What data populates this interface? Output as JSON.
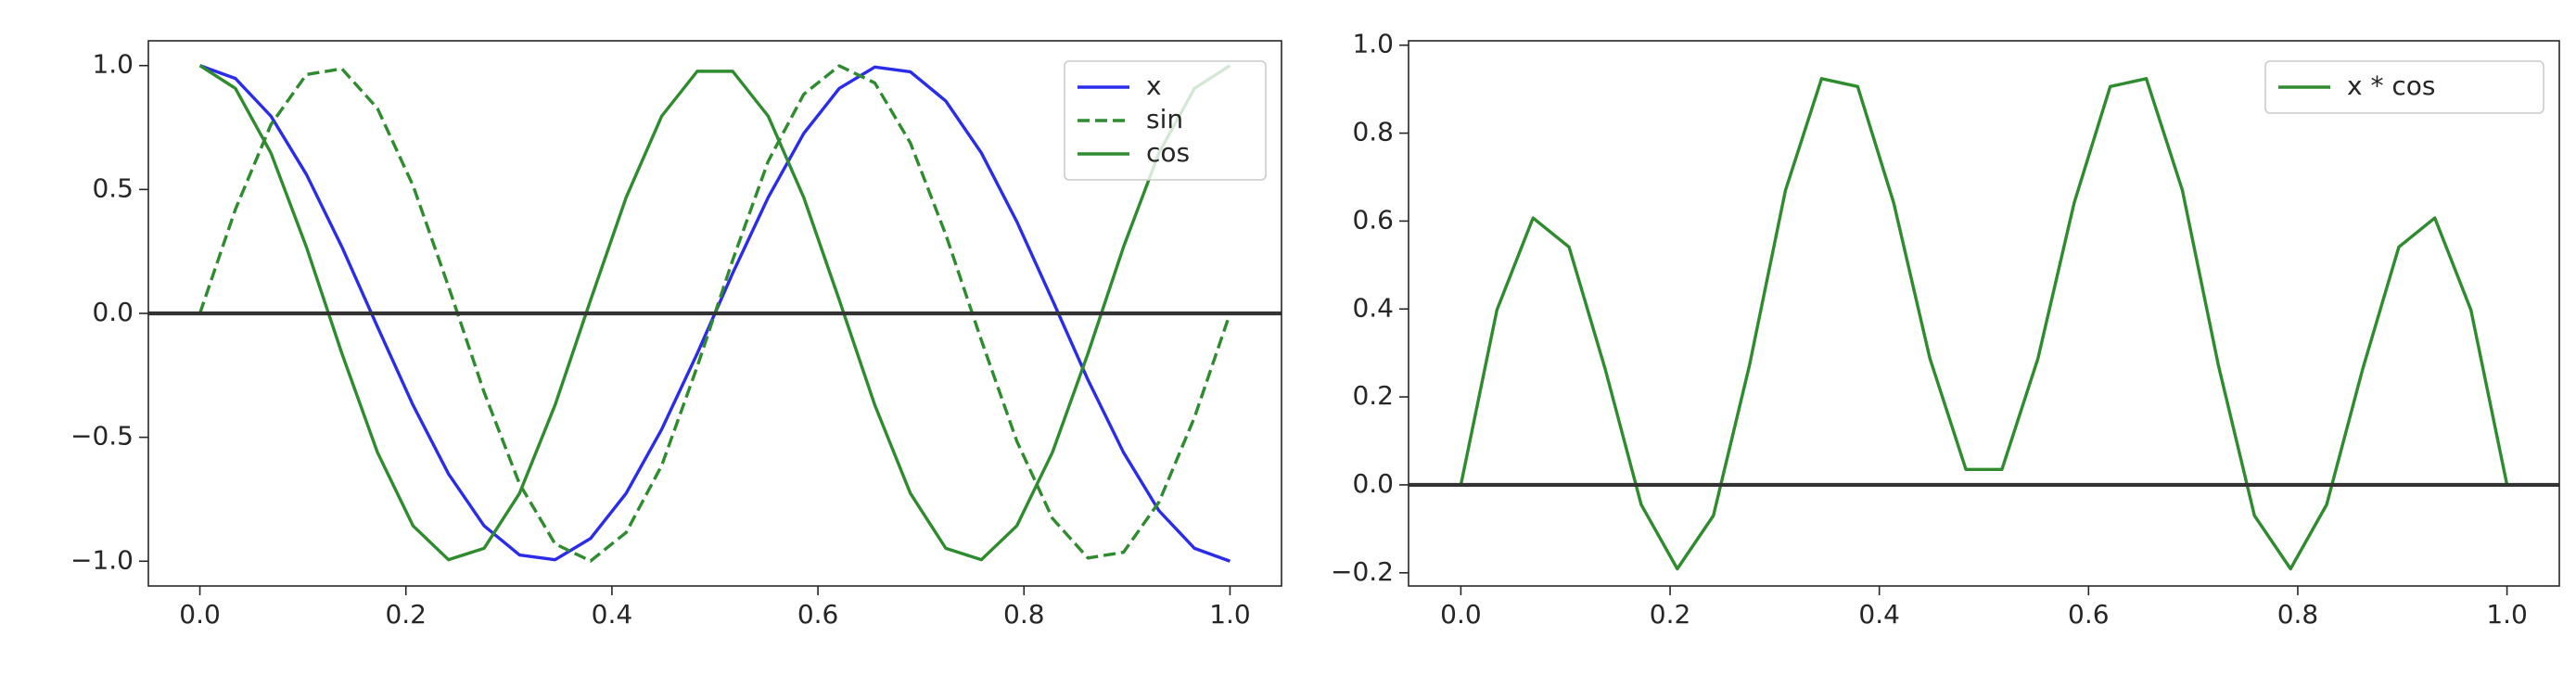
{
  "chart_data": [
    {
      "type": "line",
      "x": [
        0,
        0.0345,
        0.069,
        0.1034,
        0.1379,
        0.1724,
        0.2069,
        0.2414,
        0.2759,
        0.3103,
        0.3448,
        0.3793,
        0.4138,
        0.4483,
        0.4828,
        0.5172,
        0.5517,
        0.5862,
        0.6207,
        0.6552,
        0.6897,
        0.7241,
        0.7586,
        0.7931,
        0.8276,
        0.8621,
        0.8966,
        0.931,
        0.9655,
        1
      ],
      "series": [
        {
          "name": "x",
          "color": "#2b2bea",
          "linestyle": "solid",
          "values": [
            1,
            0.948,
            0.796,
            0.561,
            0.268,
            -0.054,
            -0.37,
            -0.648,
            -0.857,
            -0.975,
            -0.994,
            -0.908,
            -0.726,
            -0.468,
            -0.162,
            0.162,
            0.468,
            0.726,
            0.908,
            0.994,
            0.975,
            0.857,
            0.648,
            0.37,
            0.054,
            -0.268,
            -0.561,
            -0.796,
            -0.948,
            -1
          ]
        },
        {
          "name": "sin",
          "color": "#2e8b2e",
          "linestyle": "dashed",
          "values": [
            0,
            0.42,
            0.762,
            0.964,
            0.987,
            0.827,
            0.516,
            0.108,
            -0.318,
            -0.688,
            -0.93,
            -0.999,
            -0.884,
            -0.614,
            -0.215,
            0.215,
            0.614,
            0.884,
            0.999,
            0.93,
            0.688,
            0.318,
            -0.108,
            -0.516,
            -0.827,
            -0.987,
            -0.964,
            -0.762,
            -0.42,
            0
          ]
        },
        {
          "name": "cos",
          "color": "#2e8b2e",
          "linestyle": "solid",
          "values": [
            1,
            0.908,
            0.647,
            0.268,
            -0.162,
            -0.561,
            -0.857,
            -0.994,
            -0.948,
            -0.726,
            -0.37,
            0.054,
            0.468,
            0.796,
            0.977,
            0.977,
            0.796,
            0.468,
            0.054,
            -0.37,
            -0.726,
            -0.948,
            -0.994,
            -0.857,
            -0.561,
            -0.162,
            0.268,
            0.647,
            0.908,
            1
          ]
        }
      ],
      "xlim": [
        -0.05,
        1.05
      ],
      "ylim": [
        -1.1,
        1.1
      ],
      "xticks": [
        {
          "value": 0,
          "label": "0.0"
        },
        {
          "value": 0.2,
          "label": "0.2"
        },
        {
          "value": 0.4,
          "label": "0.4"
        },
        {
          "value": 0.6,
          "label": "0.6"
        },
        {
          "value": 0.8,
          "label": "0.8"
        },
        {
          "value": 1,
          "label": "1.0"
        }
      ],
      "yticks": [
        {
          "value": -1,
          "label": "−1.0"
        },
        {
          "value": -0.5,
          "label": "−0.5"
        },
        {
          "value": 0,
          "label": "0.0"
        },
        {
          "value": 0.5,
          "label": "0.5"
        },
        {
          "value": 1,
          "label": "1.0"
        }
      ],
      "axhline": 0,
      "axhline_color": "#333333",
      "legend": "upper right"
    },
    {
      "type": "line",
      "x": [
        0,
        0.0345,
        0.069,
        0.1034,
        0.1379,
        0.1724,
        0.2069,
        0.2414,
        0.2759,
        0.3103,
        0.3448,
        0.3793,
        0.4138,
        0.4483,
        0.4828,
        0.5172,
        0.5517,
        0.5862,
        0.6207,
        0.6552,
        0.6897,
        0.7241,
        0.7586,
        0.7931,
        0.8276,
        0.8621,
        0.8966,
        0.931,
        0.9655,
        1
      ],
      "series": [
        {
          "name": "x * cos",
          "color": "#2e8b2e",
          "linestyle": "solid",
          "values": [
            0,
            0.398,
            0.607,
            0.541,
            0.264,
            -0.045,
            -0.191,
            -0.07,
            0.272,
            0.67,
            0.924,
            0.906,
            0.641,
            0.288,
            0.035,
            0.035,
            0.288,
            0.641,
            0.906,
            0.924,
            0.67,
            0.272,
            -0.07,
            -0.191,
            -0.045,
            0.264,
            0.541,
            0.607,
            0.398,
            0
          ]
        }
      ],
      "xlim": [
        -0.05,
        1.05
      ],
      "ylim": [
        -0.23,
        1.01
      ],
      "xticks": [
        {
          "value": 0,
          "label": "0.0"
        },
        {
          "value": 0.2,
          "label": "0.2"
        },
        {
          "value": 0.4,
          "label": "0.4"
        },
        {
          "value": 0.6,
          "label": "0.6"
        },
        {
          "value": 0.8,
          "label": "0.8"
        },
        {
          "value": 1,
          "label": "1.0"
        }
      ],
      "yticks": [
        {
          "value": -0.2,
          "label": "−0.2"
        },
        {
          "value": 0,
          "label": "0.0"
        },
        {
          "value": 0.2,
          "label": "0.2"
        },
        {
          "value": 0.4,
          "label": "0.4"
        },
        {
          "value": 0.6,
          "label": "0.6"
        },
        {
          "value": 0.8,
          "label": "0.8"
        },
        {
          "value": 1,
          "label": "1.0"
        }
      ],
      "axhline": 0,
      "axhline_color": "#333333",
      "legend": "upper right"
    }
  ]
}
